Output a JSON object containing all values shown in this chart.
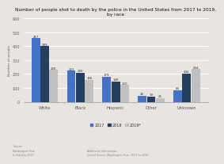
{
  "title": "Number of people shot to death by the police in the United States from 2017 to 2019,\nby race",
  "categories": [
    "White",
    "Black",
    "Hispanic",
    "Other",
    "Unknown"
  ],
  "series": {
    "2017": [
      457,
      223,
      179,
      44,
      84
    ],
    "2018": [
      399,
      209,
      148,
      39,
      204
    ],
    "2019*": [
      228,
      156,
      120,
      26,
      234
    ]
  },
  "colors": {
    "2017": "#4472C4",
    "2018": "#243F60",
    "2019*": "#C0C0C0"
  },
  "ylabel": "Number of people",
  "ylim": [
    0,
    600
  ],
  "yticks": [
    0,
    100,
    200,
    300,
    400,
    500,
    600
  ],
  "background_color": "#E8E4DF",
  "plot_bg_color": "#E8E4DF",
  "source_text": "Source:\nWashington Post\n& Statista 2019",
  "add_info": "Additional information:\nUnited States, Washington Post, 2017 to 2019"
}
